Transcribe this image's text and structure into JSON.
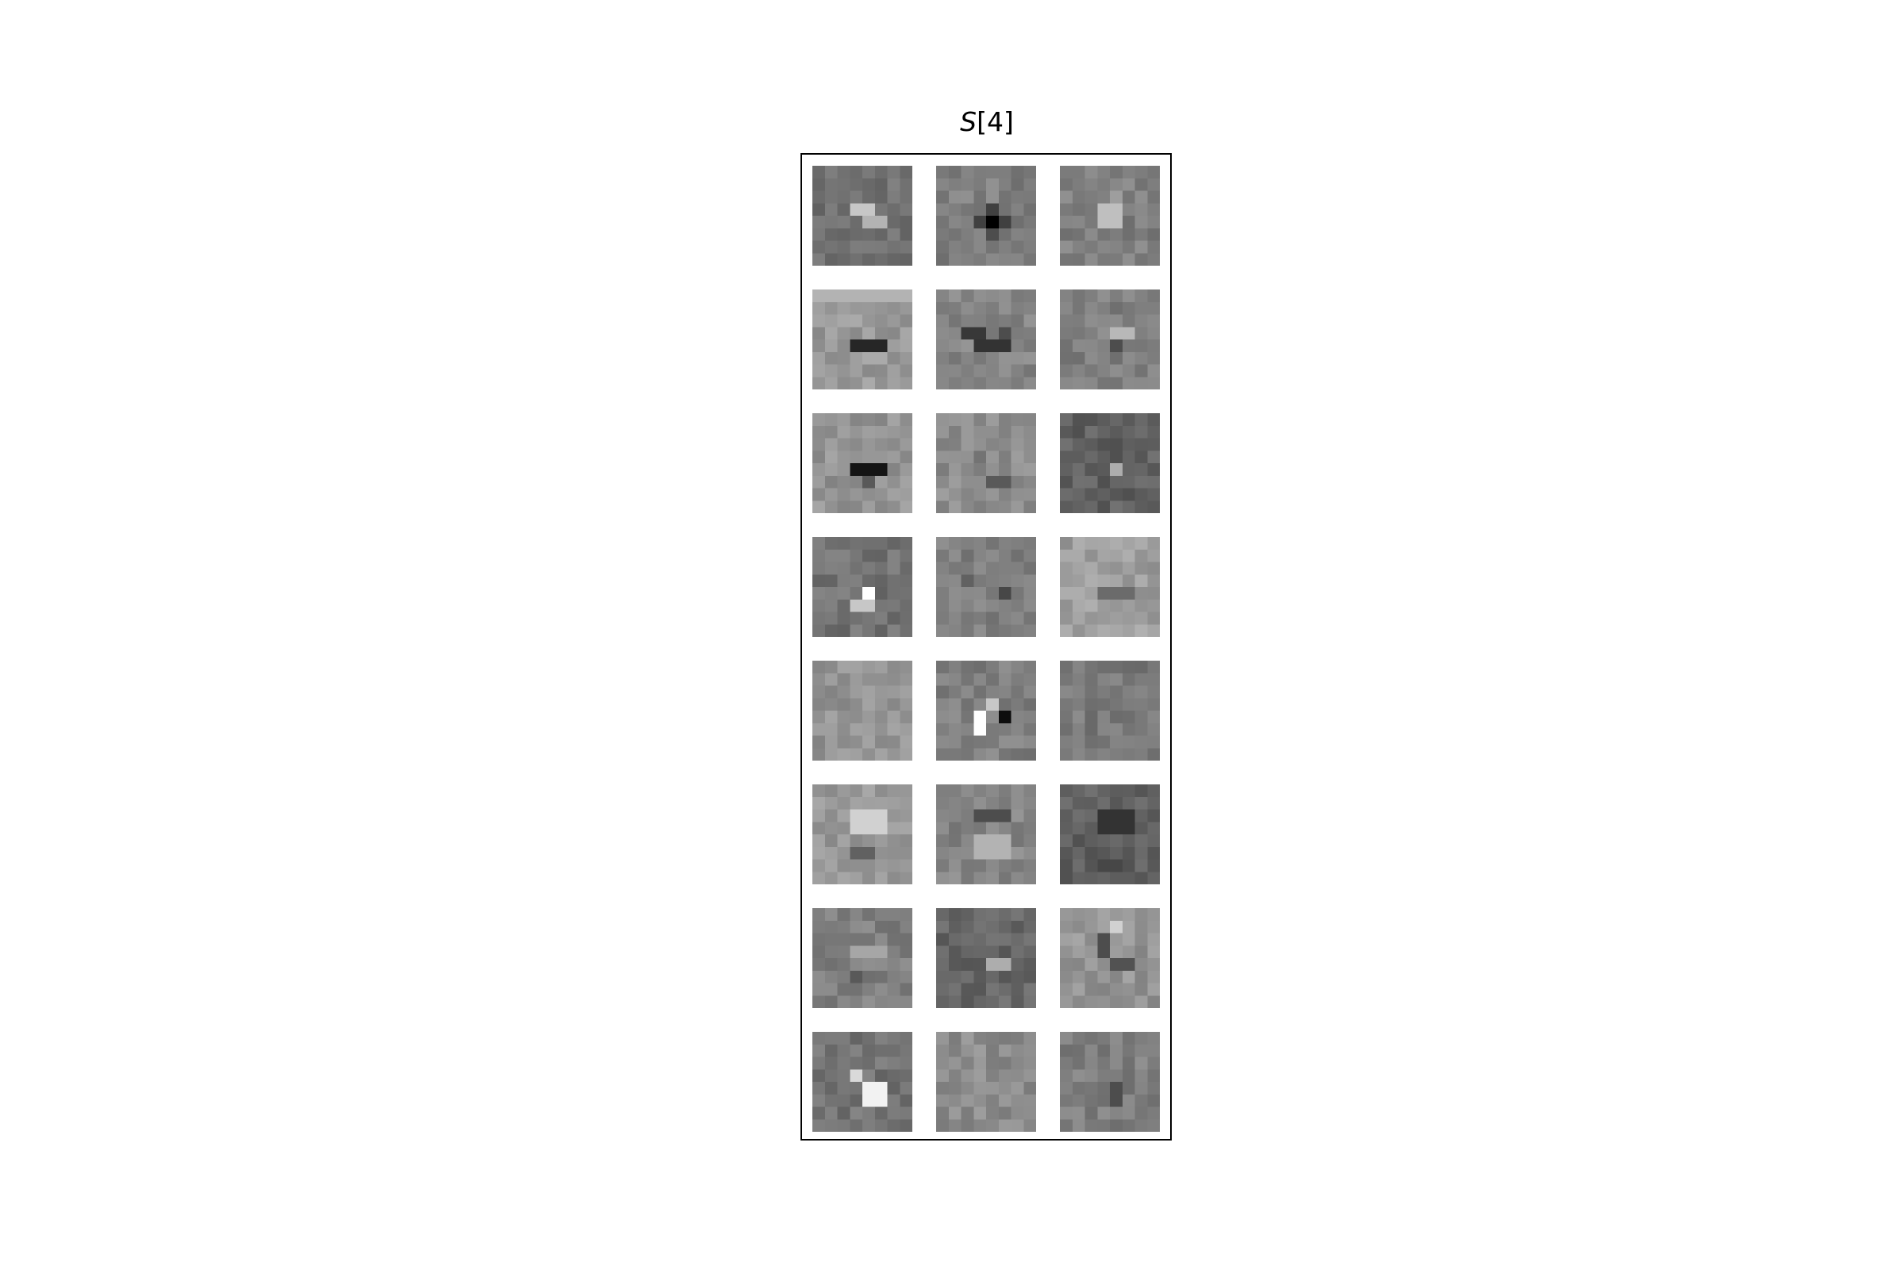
{
  "chart_data": {
    "type": "heatmap",
    "title_symbol": "S",
    "title_index": "[4]",
    "colormap": "gray",
    "grid": {
      "rows": 8,
      "cols": 3
    },
    "tile_resolution": [
      8,
      8
    ],
    "tiles": [
      {
        "row": 0,
        "col": 0,
        "base": 0.45,
        "features": [
          {
            "r": 3,
            "c": 3,
            "w": 2,
            "h": 1,
            "v": 0.78
          },
          {
            "r": 4,
            "c": 4,
            "w": 2,
            "h": 1,
            "v": 0.7
          }
        ]
      },
      {
        "row": 0,
        "col": 1,
        "base": 0.5,
        "features": [
          {
            "r": 4,
            "c": 4,
            "w": 1,
            "h": 1,
            "v": 0.0
          },
          {
            "r": 3,
            "c": 4,
            "w": 1,
            "h": 1,
            "v": 0.25
          },
          {
            "r": 4,
            "c": 3,
            "w": 1,
            "h": 1,
            "v": 0.25
          },
          {
            "r": 4,
            "c": 5,
            "w": 1,
            "h": 1,
            "v": 0.25
          },
          {
            "r": 5,
            "c": 4,
            "w": 1,
            "h": 1,
            "v": 0.3
          }
        ]
      },
      {
        "row": 0,
        "col": 2,
        "base": 0.5,
        "features": [
          {
            "r": 3,
            "c": 3,
            "w": 2,
            "h": 2,
            "v": 0.75
          },
          {
            "r": 2,
            "c": 4,
            "w": 1,
            "h": 1,
            "v": 0.62
          }
        ]
      },
      {
        "row": 1,
        "col": 0,
        "base": 0.6,
        "features": [
          {
            "r": 4,
            "c": 3,
            "w": 3,
            "h": 1,
            "v": 0.15
          },
          {
            "r": 0,
            "c": 0,
            "w": 8,
            "h": 1,
            "v": 0.7
          }
        ]
      },
      {
        "row": 1,
        "col": 1,
        "base": 0.52,
        "features": [
          {
            "r": 3,
            "c": 2,
            "w": 2,
            "h": 1,
            "v": 0.22
          },
          {
            "r": 4,
            "c": 3,
            "w": 3,
            "h": 1,
            "v": 0.2
          },
          {
            "r": 3,
            "c": 5,
            "w": 1,
            "h": 1,
            "v": 0.3
          }
        ]
      },
      {
        "row": 1,
        "col": 2,
        "base": 0.5,
        "features": [
          {
            "r": 3,
            "c": 4,
            "w": 2,
            "h": 1,
            "v": 0.72
          },
          {
            "r": 4,
            "c": 4,
            "w": 1,
            "h": 1,
            "v": 0.3
          }
        ]
      },
      {
        "row": 2,
        "col": 0,
        "base": 0.58,
        "features": [
          {
            "r": 4,
            "c": 3,
            "w": 3,
            "h": 1,
            "v": 0.08
          },
          {
            "r": 5,
            "c": 4,
            "w": 1,
            "h": 1,
            "v": 0.35
          }
        ]
      },
      {
        "row": 2,
        "col": 1,
        "base": 0.55,
        "features": [
          {
            "r": 5,
            "c": 4,
            "w": 2,
            "h": 1,
            "v": 0.35
          },
          {
            "r": 3,
            "c": 3,
            "w": 1,
            "h": 1,
            "v": 0.45
          }
        ]
      },
      {
        "row": 2,
        "col": 2,
        "base": 0.38,
        "features": [
          {
            "r": 4,
            "c": 4,
            "w": 1,
            "h": 1,
            "v": 0.68
          }
        ]
      },
      {
        "row": 3,
        "col": 0,
        "base": 0.45,
        "features": [
          {
            "r": 4,
            "c": 4,
            "w": 1,
            "h": 1,
            "v": 1.0
          },
          {
            "r": 5,
            "c": 3,
            "w": 2,
            "h": 1,
            "v": 0.78
          }
        ]
      },
      {
        "row": 3,
        "col": 1,
        "base": 0.5,
        "features": [
          {
            "r": 4,
            "c": 5,
            "w": 1,
            "h": 1,
            "v": 0.28
          },
          {
            "r": 3,
            "c": 2,
            "w": 1,
            "h": 1,
            "v": 0.38
          }
        ]
      },
      {
        "row": 3,
        "col": 2,
        "base": 0.62,
        "features": [
          {
            "r": 4,
            "c": 3,
            "w": 3,
            "h": 1,
            "v": 0.42
          }
        ]
      },
      {
        "row": 4,
        "col": 0,
        "base": 0.58,
        "features": []
      },
      {
        "row": 4,
        "col": 1,
        "base": 0.5,
        "features": [
          {
            "r": 4,
            "c": 3,
            "w": 1,
            "h": 2,
            "v": 1.0
          },
          {
            "r": 3,
            "c": 4,
            "w": 1,
            "h": 1,
            "v": 0.78
          },
          {
            "r": 4,
            "c": 5,
            "w": 1,
            "h": 1,
            "v": 0.05
          }
        ]
      },
      {
        "row": 4,
        "col": 2,
        "base": 0.48,
        "features": []
      },
      {
        "row": 5,
        "col": 0,
        "base": 0.6,
        "features": [
          {
            "r": 2,
            "c": 3,
            "w": 3,
            "h": 2,
            "v": 0.82
          },
          {
            "r": 5,
            "c": 3,
            "w": 2,
            "h": 1,
            "v": 0.38
          }
        ]
      },
      {
        "row": 5,
        "col": 1,
        "base": 0.52,
        "features": [
          {
            "r": 2,
            "c": 3,
            "w": 3,
            "h": 1,
            "v": 0.3
          },
          {
            "r": 4,
            "c": 3,
            "w": 3,
            "h": 2,
            "v": 0.7
          }
        ]
      },
      {
        "row": 5,
        "col": 2,
        "base": 0.38,
        "features": [
          {
            "r": 2,
            "c": 3,
            "w": 3,
            "h": 2,
            "v": 0.2
          },
          {
            "r": 6,
            "c": 3,
            "w": 2,
            "h": 1,
            "v": 0.28
          }
        ]
      },
      {
        "row": 6,
        "col": 0,
        "base": 0.5,
        "features": [
          {
            "r": 3,
            "c": 3,
            "w": 3,
            "h": 1,
            "v": 0.65
          },
          {
            "r": 5,
            "c": 3,
            "w": 1,
            "h": 1,
            "v": 0.35
          }
        ]
      },
      {
        "row": 6,
        "col": 1,
        "base": 0.4,
        "features": [
          {
            "r": 4,
            "c": 4,
            "w": 2,
            "h": 1,
            "v": 0.68
          }
        ]
      },
      {
        "row": 6,
        "col": 2,
        "base": 0.58,
        "features": [
          {
            "r": 2,
            "c": 3,
            "w": 1,
            "h": 2,
            "v": 0.3
          },
          {
            "r": 4,
            "c": 4,
            "w": 2,
            "h": 1,
            "v": 0.32
          },
          {
            "r": 1,
            "c": 4,
            "w": 1,
            "h": 1,
            "v": 0.82
          }
        ]
      },
      {
        "row": 7,
        "col": 0,
        "base": 0.45,
        "features": [
          {
            "r": 3,
            "c": 3,
            "w": 1,
            "h": 1,
            "v": 0.85
          },
          {
            "r": 4,
            "c": 4,
            "w": 2,
            "h": 2,
            "v": 0.95
          }
        ]
      },
      {
        "row": 7,
        "col": 1,
        "base": 0.55,
        "features": []
      },
      {
        "row": 7,
        "col": 2,
        "base": 0.5,
        "features": [
          {
            "r": 4,
            "c": 4,
            "w": 1,
            "h": 2,
            "v": 0.3
          }
        ]
      }
    ]
  }
}
